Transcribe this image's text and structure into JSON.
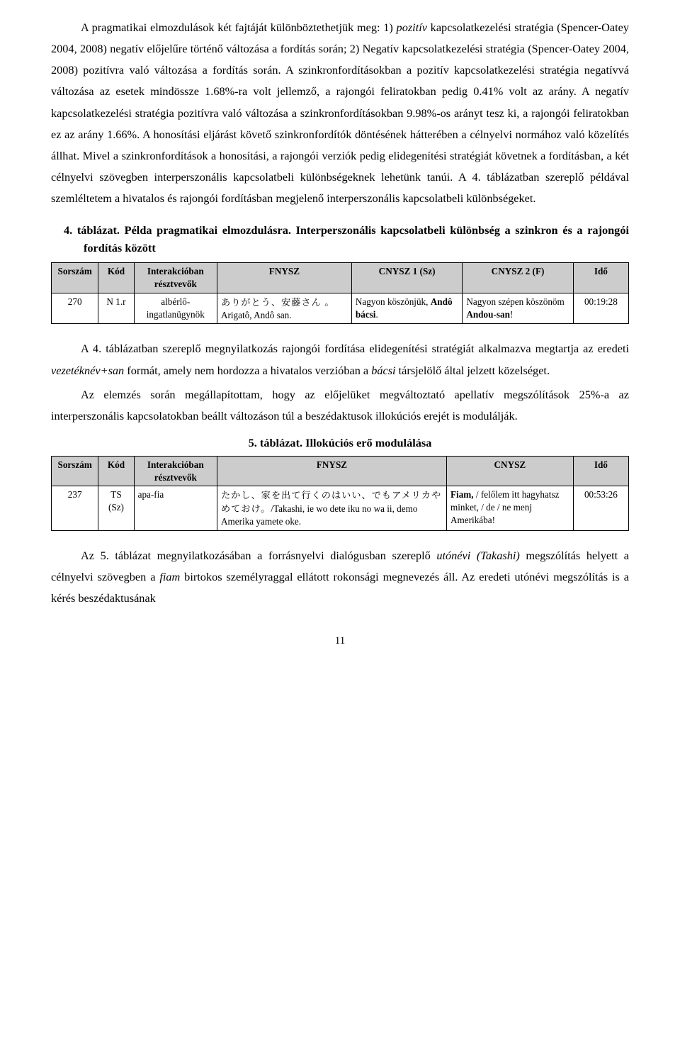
{
  "para1_html": "A pragmatikai elmozdulások két fajtáját különböztethetjük meg: 1) <span class='italic'>pozitív</span> kapcsolatkezelési stratégia (Spencer-Oatey 2004, 2008) negatív előjelűre történő változása a fordítás során; 2) Negatív kapcsolatkezelési stratégia (Spencer-Oatey 2004, 2008) pozitívra való változása a fordítás során. A szinkronfordításokban a pozitív kapcsolatkezelési stratégia negatívvá változása az esetek mindössze 1.68%-ra volt jellemző, a rajongói feliratokban pedig 0.41% volt az arány. A negatív kapcsolatkezelési stratégia pozitívra való változása a szinkronfordításokban 9.98%-os arányt tesz ki, a rajongói feliratokban ez az arány 1.66%. A honosítási eljárást követő szinkronfordítók döntésének hátterében a célnyelvi normához való közelítés állhat. Mivel a szinkronfordítások a honosítási, a rajongói verziók pedig elidegenítési stratégiát követnek a fordításban, a két célnyelvi szövegben interperszonális kapcsolatbeli különbségeknek lehetünk tanúi. A 4. táblázatban szereplő példával szemléltetem a hivatalos és rajongói fordításban megjelenő interperszonális kapcsolatbeli különbségeket.",
  "heading4": "4. táblázat. Példa pragmatikai elmozdulásra. Interperszonális kapcsolatbeli különbség a szinkron és a rajongói fordítás között",
  "table4": {
    "headers": [
      "Sorszám",
      "Kód",
      "Interakcióban résztvevők",
      "FNYSZ",
      "CNYSZ 1 (Sz)",
      "CNYSZ 2 (F)",
      "Idő"
    ],
    "row": {
      "sorszam": "270",
      "kod": "N 1.r",
      "resztvevok": "albérlő-ingatlanügynök",
      "fnysz_html": "<span class='cjk'>ありがとう、安藤さん 。</span> Arigatô, Andô san.",
      "cnysz1_html": "Nagyon köszönjük, <span class='bold'>Andô bácsi</span>.",
      "cnysz2_html": "Nagyon szépen köszönöm <span class='bold'>Andou-san</span>!",
      "ido": "00:19:28"
    },
    "col_widths": [
      "58px",
      "45px",
      "105px",
      "170px",
      "140px",
      "140px",
      "70px"
    ]
  },
  "para2_html": "A 4. táblázatban szereplő megnyilatkozás rajongói fordítása elidegenítési stratégiát alkalmazva megtartja az eredeti <span class='italic'>vezetéknév+san</span> formát, amely nem hordozza a hivatalos verzióban a <span class='italic'>bácsi</span> társjelölő által jelzett közelséget.",
  "para3": "Az elemzés során megállapítottam, hogy az előjelüket megváltoztató apellatív megszólítások 25%-a az interperszonális kapcsolatokban beállt változáson túl a beszédaktusok illokúciós erejét is modulálják.",
  "heading5": "5. táblázat. Illokúciós erő modulálása",
  "table5": {
    "headers": [
      "Sorszám",
      "Kód",
      "Interakcióban résztvevők",
      "FNYSZ",
      "CNYSZ",
      "Idő"
    ],
    "row": {
      "sorszam": "237",
      "kod": "TS (Sz)",
      "resztvevok": "apa-fia",
      "fnysz_html": "<span class='cjk'>たかし、家を出て行くのはいい、でもアメリカやめておけ。</span>/Takashi, ie wo dete iku no wa ii, demo Amerika yamete oke.",
      "cnysz_html": "<span class='bold'>Fiam,</span> / felőlem itt hagyhatsz minket, / de / ne menj Amerikába!",
      "ido": "00:53:26"
    },
    "col_widths": [
      "58px",
      "45px",
      "105px",
      "290px",
      "160px",
      "70px"
    ]
  },
  "para4_html": "Az 5. táblázat megnyilatkozásában a forrásnyelvi dialógusban szereplő <span class='italic'>utónévi (Takashi)</span> megszólítás helyett a célnyelvi szövegben a <span class='italic'>fiam</span> birtokos személyraggal ellátott rokonsági megnevezés áll. Az eredeti utónévi megszólítás is a kérés beszédaktusának",
  "page_number": "11"
}
